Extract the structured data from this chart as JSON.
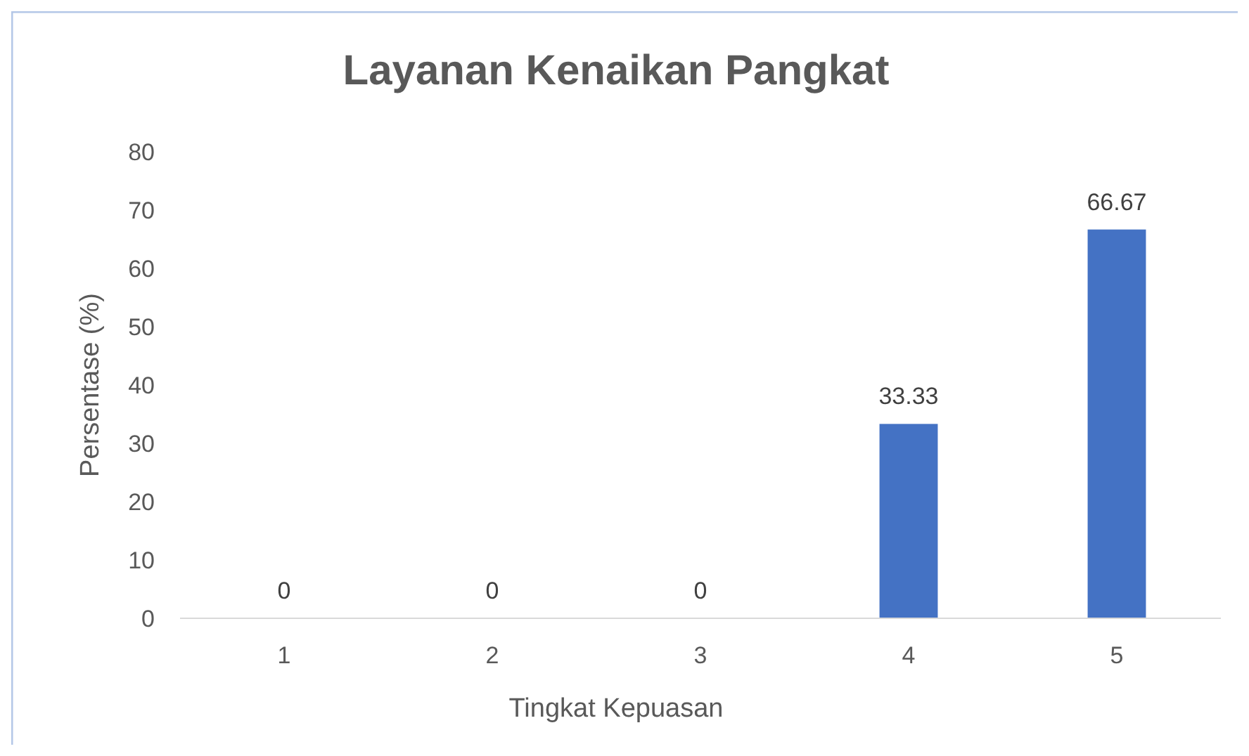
{
  "chart_data": {
    "type": "bar",
    "title": "Layanan Kenaikan Pangkat",
    "xlabel": "Tingkat Kepuasan",
    "ylabel": "Persentase (%)",
    "categories": [
      "1",
      "2",
      "3",
      "4",
      "5"
    ],
    "values": [
      0,
      0,
      0,
      33.33,
      66.67
    ],
    "color": "#4472c4",
    "ylim": [
      0,
      80
    ],
    "yticks": [
      0,
      10,
      20,
      30,
      40,
      50,
      60,
      70,
      80
    ],
    "grid": false,
    "data_labels": true
  }
}
